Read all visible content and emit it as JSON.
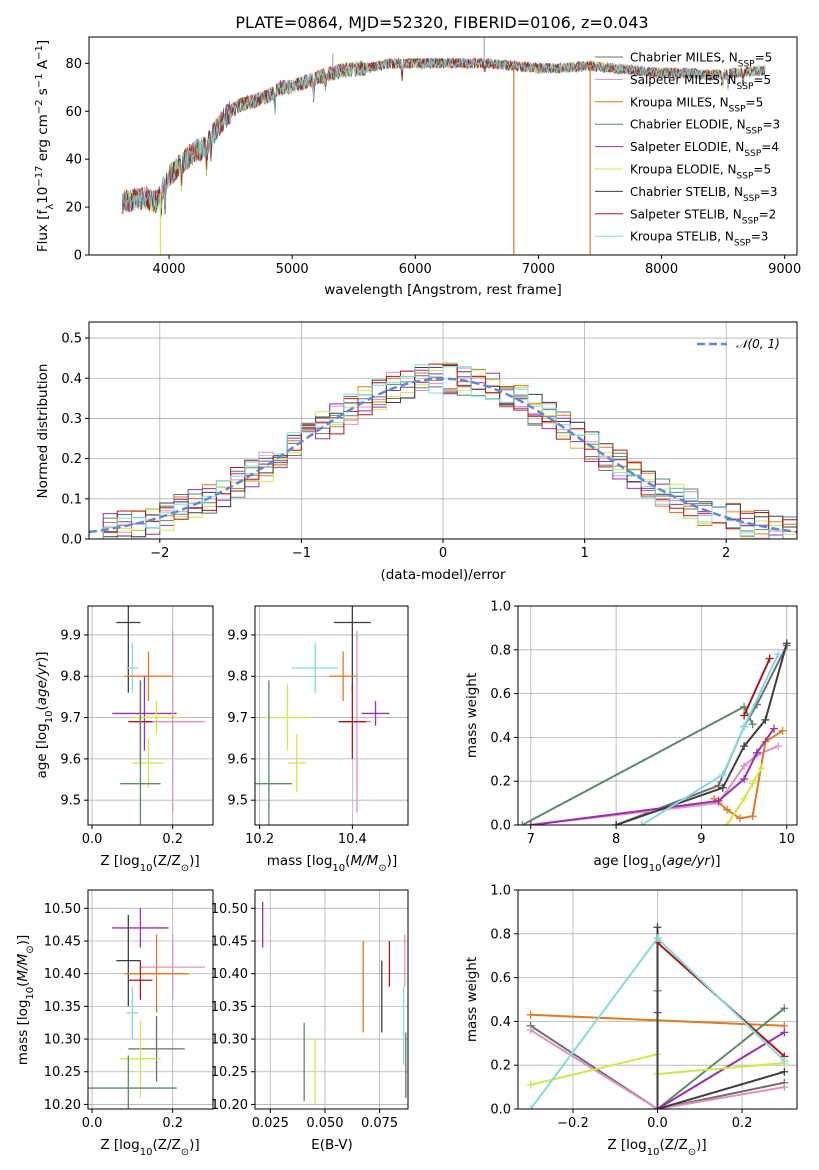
{
  "title": "PLATE=0864, MJD=52320, FIBERID=0106, z=0.043",
  "models": [
    {
      "label": "Chabrier MILES, N",
      "sub": "SSP",
      "post": "=5",
      "color": "#6e6e6e"
    },
    {
      "label": "Salpeter MILES, N",
      "sub": "SSP",
      "post": "=5",
      "color": "#e48fc4"
    },
    {
      "label": "Kroupa MILES, N",
      "sub": "SSP",
      "post": "=5",
      "color": "#e07a20"
    },
    {
      "label": "Chabrier ELODIE, N",
      "sub": "SSP",
      "post": "=3",
      "color": "#5a8a66"
    },
    {
      "label": "Salpeter ELODIE, N",
      "sub": "SSP",
      "post": "=4",
      "color": "#9a30b0"
    },
    {
      "label": "Kroupa ELODIE, N",
      "sub": "SSP",
      "post": "=5",
      "color": "#cfe84a"
    },
    {
      "label": "Chabrier STELIB, N",
      "sub": "SSP",
      "post": "=3",
      "color": "#3f3f3f"
    },
    {
      "label": "Salpeter STELIB, N",
      "sub": "SSP",
      "post": "=2",
      "color": "#b01818"
    },
    {
      "label": "Kroupa STELIB, N",
      "sub": "SSP",
      "post": "=3",
      "color": "#7fdde0"
    }
  ],
  "chart_data": [
    {
      "id": "spectrum",
      "type": "line",
      "xlabel": "wavelength [Angstrom, rest frame]",
      "ylabel_main": "Flux [f",
      "ylabel_sub": "λ",
      "ylabel_mid": "10",
      "ylabel_sup1": "−17",
      "ylabel_rest": " erg cm",
      "ylabel_sup2": "−2",
      "ylabel_rest2": " s",
      "ylabel_sup3": "−1",
      "ylabel_rest3": " A",
      "ylabel_sup4": "−1",
      "ylabel_end": "]",
      "xlim": [
        3350,
        9100
      ],
      "ylim": [
        0,
        91
      ],
      "xticks": [
        "4000",
        "5000",
        "6000",
        "7000",
        "8000",
        "9000"
      ],
      "yticks": [
        "0",
        "20",
        "40",
        "60",
        "80"
      ],
      "continuum": [
        [
          3620,
          22
        ],
        [
          3800,
          24
        ],
        [
          3900,
          22
        ],
        [
          4000,
          33
        ],
        [
          4100,
          38
        ],
        [
          4200,
          43
        ],
        [
          4300,
          45
        ],
        [
          4400,
          54
        ],
        [
          4500,
          60
        ],
        [
          4600,
          63
        ],
        [
          4800,
          66
        ],
        [
          4900,
          70
        ],
        [
          5000,
          70
        ],
        [
          5200,
          74
        ],
        [
          5400,
          77
        ],
        [
          5600,
          78
        ],
        [
          5800,
          80
        ],
        [
          6000,
          80
        ],
        [
          6200,
          80
        ],
        [
          6400,
          80
        ],
        [
          6600,
          80
        ],
        [
          6800,
          79
        ],
        [
          7000,
          78
        ],
        [
          7200,
          78
        ],
        [
          7400,
          79
        ],
        [
          7600,
          78
        ],
        [
          7800,
          77
        ],
        [
          8000,
          76
        ],
        [
          8200,
          76
        ],
        [
          8400,
          75
        ],
        [
          8600,
          76
        ],
        [
          8800,
          77
        ]
      ],
      "absorption_lines": [
        [
          3934,
          12
        ],
        [
          3969,
          10
        ],
        [
          4101,
          8
        ],
        [
          4304,
          8
        ],
        [
          4341,
          6
        ],
        [
          4861,
          8
        ],
        [
          5175,
          8
        ],
        [
          5270,
          4
        ],
        [
          5893,
          6
        ],
        [
          6563,
          4
        ],
        [
          8498,
          4
        ],
        [
          8542,
          6
        ],
        [
          8662,
          5
        ]
      ],
      "bad_pixels": [
        {
          "x": 3930,
          "color": "#cfe84a"
        },
        {
          "x": 6800,
          "color": "#e07a20"
        },
        {
          "x": 7420,
          "color": "#e07a20"
        }
      ],
      "spikes": [
        {
          "x": 5330,
          "y": 84
        },
        {
          "x": 6560,
          "y": 93
        }
      ]
    },
    {
      "id": "residuals",
      "type": "histogram",
      "xlabel": "(data-model)/error",
      "ylabel": "Normed distribution",
      "xlim": [
        -2.5,
        2.5
      ],
      "ylim": [
        0,
        0.54
      ],
      "xticks": [
        "−2",
        "−1",
        "0",
        "1",
        "2"
      ],
      "yticks": [
        "0.0",
        "0.1",
        "0.2",
        "0.3",
        "0.4",
        "0.5"
      ],
      "reference_label": "𝒩(0, 1)",
      "reference_color": "#5b8bd6",
      "bin_width": 0.1
    },
    {
      "id": "age_vs_Z",
      "type": "errorbar",
      "xlabel_pre": "Z [log",
      "xlabel_sub": "10",
      "xlabel_post": "(Z/Z",
      "xlabel_sub2": "⊙",
      "xlabel_end": ")]",
      "ylabel": "age  [log10(age/yr)]",
      "xlim": [
        -0.01,
        0.3
      ],
      "ylim": [
        9.44,
        9.97
      ],
      "xticks": [
        0.0,
        0.2
      ],
      "yticks": [
        9.5,
        9.6,
        9.7,
        9.8,
        9.9
      ],
      "points": [
        {
          "x": 0.09,
          "xerr": 0.03,
          "y": 9.93,
          "yerr": 0.17,
          "c": 6
        },
        {
          "x": 0.1,
          "xerr": 0.015,
          "y": 9.82,
          "yerr": 0.06,
          "c": 8
        },
        {
          "x": 0.14,
          "xerr": 0.06,
          "y": 9.8,
          "yerr": 0.06,
          "c": 2
        },
        {
          "x": 0.13,
          "xerr": 0.08,
          "y": 9.71,
          "yerr": 0.09,
          "c": 4
        },
        {
          "x": 0.16,
          "xerr": 0.06,
          "y": 9.7,
          "yerr": 0.04,
          "c": 5
        },
        {
          "x": 0.2,
          "xerr": 0.08,
          "y": 9.69,
          "yerr": 0.22,
          "c": 1
        },
        {
          "x": 0.12,
          "xerr": 0.03,
          "y": 9.69,
          "yerr": 0.1,
          "c": 7
        },
        {
          "x": 0.14,
          "xerr": 0.04,
          "y": 9.59,
          "yerr": 0.06,
          "c": 5
        },
        {
          "x": 0.12,
          "xerr": 0.05,
          "y": 9.54,
          "yerr": 0.25,
          "c": 3
        }
      ]
    },
    {
      "id": "age_vs_mass",
      "type": "errorbar",
      "xlabel_pre": "mass [log",
      "xlabel_sub": "10",
      "xlabel_post": "(M/M",
      "xlabel_sub2": "⊙",
      "xlabel_end": ")]",
      "ylabel": "",
      "xlim": [
        10.19,
        10.52
      ],
      "ylim": [
        9.44,
        9.97
      ],
      "xticks": [
        10.2,
        10.4
      ],
      "yticks": [
        9.5,
        9.6,
        9.7,
        9.8,
        9.9
      ],
      "points": [
        {
          "x": 10.4,
          "xerr": 0.04,
          "y": 9.93,
          "yerr": 0.17,
          "c": 6
        },
        {
          "x": 10.32,
          "xerr": 0.05,
          "y": 9.82,
          "yerr": 0.06,
          "c": 8
        },
        {
          "x": 10.38,
          "xerr": 0.03,
          "y": 9.8,
          "yerr": 0.06,
          "c": 2
        },
        {
          "x": 10.45,
          "xerr": 0.03,
          "y": 9.71,
          "yerr": 0.03,
          "c": 4
        },
        {
          "x": 10.26,
          "xerr": 0.05,
          "y": 9.7,
          "yerr": 0.08,
          "c": 5
        },
        {
          "x": 10.41,
          "xerr": 0.03,
          "y": 9.69,
          "yerr": 0.22,
          "c": 1
        },
        {
          "x": 10.4,
          "xerr": 0.03,
          "y": 9.69,
          "yerr": 0.09,
          "c": 7
        },
        {
          "x": 10.28,
          "xerr": 0.02,
          "y": 9.59,
          "yerr": 0.07,
          "c": 5
        },
        {
          "x": 10.22,
          "xerr": 0.05,
          "y": 9.54,
          "yerr": 0.25,
          "c": 3
        }
      ]
    },
    {
      "id": "massweight_vs_age",
      "type": "line",
      "xlabel": "age  [log10(age/yr)]",
      "ylabel": "mass weight",
      "xlim": [
        6.85,
        10.12
      ],
      "ylim": [
        0,
        1
      ],
      "xticks": [
        7,
        8,
        9,
        10
      ],
      "yticks": [
        0.0,
        0.2,
        0.4,
        0.6,
        0.8,
        1.0
      ],
      "series": [
        {
          "c": 0,
          "x": [
            8.0,
            9.2,
            9.5,
            9.65,
            10.0
          ],
          "y": [
            0.0,
            0.18,
            0.45,
            0.55,
            0.82
          ]
        },
        {
          "c": 1,
          "x": [
            7.0,
            9.2,
            9.5,
            9.65,
            9.9
          ],
          "y": [
            0.0,
            0.1,
            0.27,
            0.32,
            0.36
          ]
        },
        {
          "c": 2,
          "x": [
            9.15,
            9.3,
            9.45,
            9.6,
            9.75,
            9.95
          ],
          "y": [
            0.12,
            0.07,
            0.03,
            0.04,
            0.38,
            0.43
          ]
        },
        {
          "c": 3,
          "x": [
            6.9,
            9.5,
            9.6
          ],
          "y": [
            0.0,
            0.54,
            0.46
          ]
        },
        {
          "c": 4,
          "x": [
            7.0,
            9.2,
            9.5,
            9.65,
            9.85
          ],
          "y": [
            0.0,
            0.11,
            0.21,
            0.33,
            0.44
          ]
        },
        {
          "c": 5,
          "x": [
            9.3,
            9.5,
            9.6,
            9.7
          ],
          "y": [
            0.0,
            0.12,
            0.19,
            0.26
          ]
        },
        {
          "c": 6,
          "x": [
            8.0,
            9.25,
            9.5,
            9.75,
            10.0
          ],
          "y": [
            0.0,
            0.17,
            0.36,
            0.48,
            0.83
          ]
        },
        {
          "c": 7,
          "x": [
            9.5,
            9.8
          ],
          "y": [
            0.5,
            0.76
          ]
        },
        {
          "c": 8,
          "x": [
            8.3,
            9.25,
            9.5,
            9.9
          ],
          "y": [
            0.0,
            0.23,
            0.45,
            0.78
          ]
        }
      ]
    },
    {
      "id": "mass_vs_Z",
      "type": "errorbar",
      "xlabel_pre": "Z [log",
      "xlabel_sub": "10",
      "xlabel_post": "(Z/Z",
      "xlabel_sub2": "⊙",
      "xlabel_end": ")]",
      "ylabel": "mass [log10(M/M⊙)]",
      "xlim": [
        -0.01,
        0.3
      ],
      "ylim": [
        10.193,
        10.528
      ],
      "xticks": [
        0.0,
        0.2
      ],
      "yticks": [
        10.2,
        10.25,
        10.3,
        10.35,
        10.4,
        10.45,
        10.5
      ],
      "points": [
        {
          "x": 0.12,
          "xerr": 0.07,
          "y": 10.47,
          "yerr": 0.03,
          "c": 4
        },
        {
          "x": 0.09,
          "xerr": 0.03,
          "y": 10.42,
          "yerr": 0.07,
          "c": 6
        },
        {
          "x": 0.2,
          "xerr": 0.08,
          "y": 10.41,
          "yerr": 0.05,
          "c": 1
        },
        {
          "x": 0.16,
          "xerr": 0.08,
          "y": 10.4,
          "yerr": 0.06,
          "c": 2
        },
        {
          "x": 0.12,
          "xerr": 0.03,
          "y": 10.39,
          "yerr": 0.03,
          "c": 7
        },
        {
          "x": 0.1,
          "xerr": 0.015,
          "y": 10.34,
          "yerr": 0.04,
          "c": 8
        },
        {
          "x": 0.16,
          "xerr": 0.07,
          "y": 10.285,
          "yerr": 0.05,
          "c": 0
        },
        {
          "x": 0.12,
          "xerr": 0.05,
          "y": 10.27,
          "yerr": 0.06,
          "c": 5
        },
        {
          "x": 0.09,
          "xerr": 0.12,
          "y": 10.225,
          "yerr": 0.05,
          "c": 3
        }
      ]
    },
    {
      "id": "mass_vs_ebv",
      "type": "errorbar",
      "xlabel": "E(B-V)",
      "ylabel": "",
      "xlim": [
        0.018,
        0.088
      ],
      "ylim": [
        10.193,
        10.528
      ],
      "xticks": [
        0.025,
        0.05,
        0.075
      ],
      "yticks": [
        10.2,
        10.25,
        10.3,
        10.35,
        10.4,
        10.45,
        10.5
      ],
      "points": [
        {
          "x": 0.0215,
          "y": 10.475,
          "yerr": 0.035,
          "c": 4
        },
        {
          "x": 0.0865,
          "y": 10.42,
          "yerr": 0.04,
          "c": 1
        },
        {
          "x": 0.0795,
          "y": 10.415,
          "yerr": 0.035,
          "c": 7
        },
        {
          "x": 0.0675,
          "y": 10.38,
          "yerr": 0.07,
          "c": 2
        },
        {
          "x": 0.076,
          "y": 10.365,
          "yerr": 0.055,
          "c": 6
        },
        {
          "x": 0.086,
          "y": 10.32,
          "yerr": 0.06,
          "c": 8
        },
        {
          "x": 0.0405,
          "y": 10.265,
          "yerr": 0.06,
          "c": 3
        },
        {
          "x": 0.0455,
          "y": 10.25,
          "yerr": 0.05,
          "c": 5
        },
        {
          "x": 0.087,
          "y": 10.26,
          "yerr": 0.05,
          "c": 0
        }
      ]
    },
    {
      "id": "massweight_vs_Z",
      "type": "line",
      "xlabel_pre": "Z [log",
      "xlabel_sub": "10",
      "xlabel_post": "(Z/Z",
      "xlabel_sub2": "⊙",
      "xlabel_end": ")]",
      "ylabel": "mass weight",
      "xlim": [
        -0.33,
        0.33
      ],
      "ylim": [
        0,
        1
      ],
      "xticks": [
        -0.2,
        0.0,
        0.2
      ],
      "yticks": [
        0.0,
        0.2,
        0.4,
        0.6,
        0.8,
        1.0
      ],
      "series": [
        {
          "c": 0,
          "x": [
            -0.3,
            0.0,
            0.3
          ],
          "y": [
            0.38,
            0.0,
            0.12
          ]
        },
        {
          "c": 1,
          "x": [
            -0.3,
            0.0,
            0.3
          ],
          "y": [
            0.36,
            0.0,
            0.1
          ]
        },
        {
          "c": 2,
          "x": [
            -0.3,
            0.3
          ],
          "y": [
            0.43,
            0.38
          ]
        },
        {
          "c": 3,
          "x": [
            0.0,
            0.0,
            0.3
          ],
          "y": [
            0.54,
            0.0,
            0.46
          ]
        },
        {
          "c": 4,
          "x": [
            0.0,
            0.0,
            0.3
          ],
          "y": [
            0.44,
            0.0,
            0.35
          ]
        },
        {
          "c": 5,
          "x": [
            -0.3,
            0.0,
            0.0,
            0.3
          ],
          "y": [
            0.11,
            0.25,
            0.16,
            0.21
          ]
        },
        {
          "c": 6,
          "x": [
            0.0,
            0.0,
            0.3
          ],
          "y": [
            0.83,
            0.0,
            0.17
          ]
        },
        {
          "c": 7,
          "x": [
            0.0,
            0.3
          ],
          "y": [
            0.76,
            0.24
          ]
        },
        {
          "c": 8,
          "x": [
            -0.3,
            0.0,
            0.3
          ],
          "y": [
            0.0,
            0.78,
            0.22
          ]
        }
      ]
    }
  ]
}
